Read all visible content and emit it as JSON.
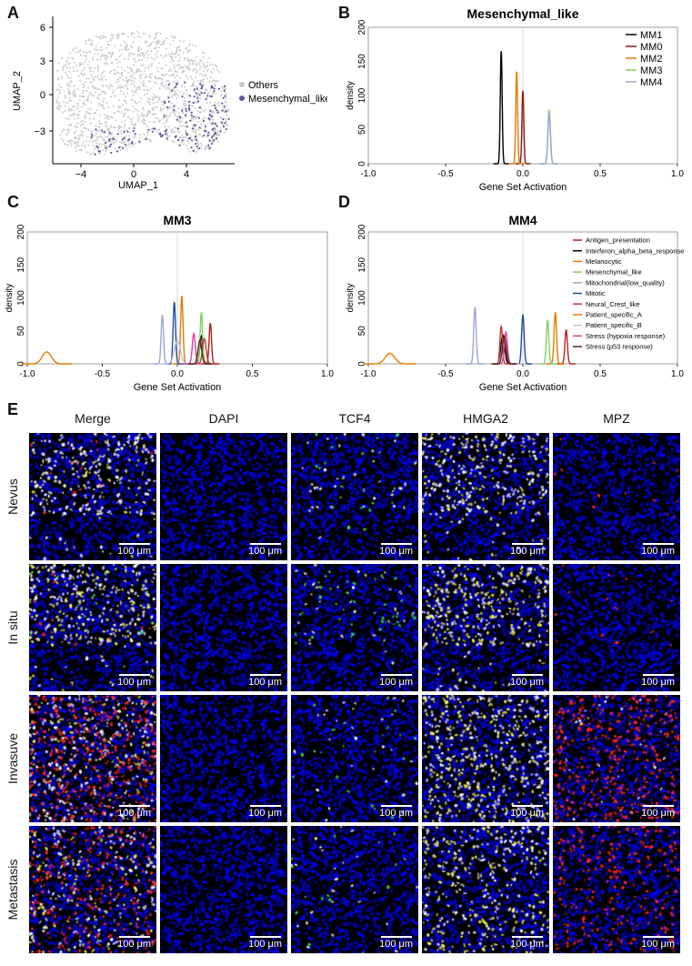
{
  "panels": {
    "A": {
      "letter": "A",
      "xlabel": "UMAP_1",
      "ylabel": "UMAP_2",
      "xticks": [
        "−4",
        "0",
        "4"
      ],
      "yticks": [
        "6",
        "3",
        "0",
        "−3"
      ],
      "legend": [
        {
          "label": "Others",
          "color": "#c8c8c8"
        },
        {
          "label": "Mesenchymal_like",
          "color": "#5a5aa0"
        }
      ]
    },
    "B": {
      "letter": "B"
    },
    "C": {
      "letter": "C"
    },
    "D": {
      "letter": "D"
    },
    "E": {
      "letter": "E"
    }
  },
  "chart_data": [
    {
      "id": "B",
      "type": "line",
      "title": "Mesenchymal_like",
      "xlabel": "Gene Set Activation",
      "ylabel": "density",
      "xlim": [
        -1.0,
        1.0
      ],
      "ylim": [
        0,
        200
      ],
      "xticks": [
        "-1.0",
        "-0.5",
        "0.0",
        "0.5",
        "1.0"
      ],
      "yticks": [
        "0",
        "50",
        "100",
        "150",
        "200"
      ],
      "legend_position": "top-right",
      "series": [
        {
          "name": "MM1",
          "color": "#000000",
          "peak_x": -0.14,
          "peak_y": 165,
          "width": 0.006
        },
        {
          "name": "MM0",
          "color": "#8b1a1a",
          "peak_x": 0.0,
          "peak_y": 107,
          "width": 0.006
        },
        {
          "name": "MM2",
          "color": "#e07b00",
          "peak_x": -0.04,
          "peak_y": 135,
          "width": 0.006
        },
        {
          "name": "MM3",
          "color": "#80d060",
          "peak_x": 0.17,
          "peak_y": 79,
          "width": 0.008
        },
        {
          "name": "MM4",
          "color": "#9aa4d8",
          "peak_x": 0.17,
          "peak_y": 75,
          "width": 0.008
        }
      ]
    },
    {
      "id": "C",
      "type": "line",
      "title": "MM3",
      "xlabel": "Gene Set Activation",
      "ylabel": "density",
      "xlim": [
        -1.0,
        1.0
      ],
      "ylim": [
        0,
        200
      ],
      "xticks": [
        "-1.0",
        "-0.5",
        "0.0",
        "0.5",
        "1.0"
      ],
      "yticks": [
        "0",
        "50",
        "100",
        "150",
        "200"
      ],
      "series": [
        {
          "name": "Antigen_presentation",
          "color": "#b22222",
          "peak_x": 0.22,
          "peak_y": 62,
          "width": 0.008
        },
        {
          "name": "Interferon_alpha_beta_response",
          "color": "#000000",
          "peak_x": 0.16,
          "peak_y": 42,
          "width": 0.01
        },
        {
          "name": "Melanocytic",
          "color": "#e07b00",
          "peak_x": 0.03,
          "peak_y": 103,
          "width": 0.008
        },
        {
          "name": "Mesenchymal_like",
          "color": "#80d060",
          "peak_x": 0.16,
          "peak_y": 78,
          "width": 0.008
        },
        {
          "name": "Mitochondrial(low_quality)",
          "color": "#9aa4d8",
          "peak_x": -0.1,
          "peak_y": 74,
          "width": 0.008
        },
        {
          "name": "Mitotic",
          "color": "#1f4e9c",
          "peak_x": -0.02,
          "peak_y": 94,
          "width": 0.008
        },
        {
          "name": "Neural_Crest_like",
          "color": "#c0392b",
          "peak_x": 0.18,
          "peak_y": 38,
          "width": 0.012
        },
        {
          "name": "Patient_specific_A",
          "color": "#e07b00",
          "peak_x": -0.87,
          "peak_y": 18,
          "width": 0.03
        },
        {
          "name": "Patient_specific_B",
          "color": "#b8bfe8",
          "peak_x": 0.0,
          "peak_y": 35,
          "width": 0.02
        },
        {
          "name": "Stress (hypoxia response)",
          "color": "#e03fa0",
          "peak_x": 0.11,
          "peak_y": 46,
          "width": 0.01
        },
        {
          "name": "Stress (p53 response)",
          "color": "#5a2a1a",
          "peak_x": 0.15,
          "peak_y": 36,
          "width": 0.012
        }
      ]
    },
    {
      "id": "D",
      "type": "line",
      "title": "MM4",
      "xlabel": "Gene Set Activation",
      "ylabel": "density",
      "xlim": [
        -1.0,
        1.0
      ],
      "ylim": [
        0,
        200
      ],
      "xticks": [
        "-1.0",
        "-0.5",
        "0.0",
        "0.5",
        "1.0"
      ],
      "yticks": [
        "0",
        "50",
        "100",
        "150",
        "200"
      ],
      "legend_position": "top-right",
      "series": [
        {
          "name": "Antigen_presentation",
          "color": "#b22222",
          "peak_x": 0.28,
          "peak_y": 52,
          "width": 0.008
        },
        {
          "name": "Interferon_alpha_beta_response",
          "color": "#000000",
          "peak_x": -0.13,
          "peak_y": 44,
          "width": 0.012
        },
        {
          "name": "Melanocytic",
          "color": "#e07b00",
          "peak_x": 0.21,
          "peak_y": 78,
          "width": 0.008
        },
        {
          "name": "Mesenchymal_like",
          "color": "#80d060",
          "peak_x": 0.16,
          "peak_y": 66,
          "width": 0.008
        },
        {
          "name": "Mitochondrial(low_quality)",
          "color": "#9aa4d8",
          "peak_x": -0.31,
          "peak_y": 86,
          "width": 0.008
        },
        {
          "name": "Mitotic",
          "color": "#1f4e9c",
          "peak_x": 0.0,
          "peak_y": 75,
          "width": 0.008
        },
        {
          "name": "Neural_Crest_like",
          "color": "#c0392b",
          "peak_x": -0.14,
          "peak_y": 58,
          "width": 0.008
        },
        {
          "name": "Patient_specific_A",
          "color": "#e07b00",
          "peak_x": -0.86,
          "peak_y": 16,
          "width": 0.03
        },
        {
          "name": "Patient_specific_B",
          "color": "#b8bfe8",
          "peak_x": -0.12,
          "peak_y": 40,
          "width": 0.015
        },
        {
          "name": "Stress (hypoxia response)",
          "color": "#e03fa0",
          "peak_x": -0.11,
          "peak_y": 48,
          "width": 0.01
        },
        {
          "name": "Stress (p53 response)",
          "color": "#5a2a1a",
          "peak_x": -0.12,
          "peak_y": 42,
          "width": 0.012
        }
      ]
    }
  ],
  "microscopy": {
    "columns": [
      "Merge",
      "DAPI",
      "TCF4",
      "HMGA2",
      "MPZ"
    ],
    "rows": [
      "Nevus",
      "In situ",
      "Invasuve",
      "Metastasis"
    ],
    "scale_label": "100 μm"
  }
}
